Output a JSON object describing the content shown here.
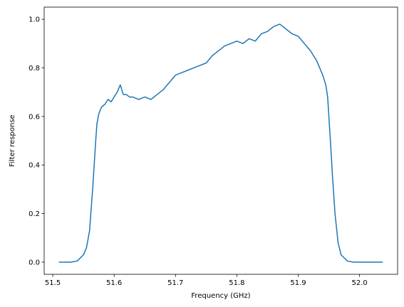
{
  "chart_data": {
    "type": "line",
    "title": "",
    "xlabel": "Frequency (GHz)",
    "ylabel": "Filter response",
    "xlim": [
      51.486,
      52.062
    ],
    "ylim": [
      -0.05,
      1.05
    ],
    "grid": false,
    "x_ticks": [
      51.5,
      51.6,
      51.7,
      51.8,
      51.9,
      52.0
    ],
    "x_tick_labels": [
      "51.5",
      "51.6",
      "51.7",
      "51.8",
      "51.9",
      "52.0"
    ],
    "y_ticks": [
      0.0,
      0.2,
      0.4,
      0.6,
      0.8,
      1.0
    ],
    "y_tick_labels": [
      "0.0",
      "0.2",
      "0.4",
      "0.6",
      "0.8",
      "1.0"
    ],
    "series": [
      {
        "color": "#1f77b4",
        "x": [
          51.51,
          51.52,
          51.53,
          51.54,
          51.55,
          51.555,
          51.56,
          51.562,
          51.565,
          51.568,
          51.57,
          51.572,
          51.575,
          51.578,
          51.58,
          51.585,
          51.59,
          51.595,
          51.6,
          51.605,
          51.61,
          51.615,
          51.62,
          51.625,
          51.63,
          51.64,
          51.65,
          51.66,
          51.67,
          51.68,
          51.69,
          51.7,
          51.71,
          51.72,
          51.73,
          51.74,
          51.75,
          51.76,
          51.77,
          51.78,
          51.79,
          51.8,
          51.81,
          51.82,
          51.83,
          51.84,
          51.85,
          51.86,
          51.87,
          51.88,
          51.89,
          51.9,
          51.91,
          51.92,
          51.93,
          51.935,
          51.94,
          51.945,
          51.948,
          51.95,
          51.953,
          51.956,
          51.96,
          51.965,
          51.97,
          51.98,
          51.99,
          52.0,
          52.01,
          52.02,
          52.03,
          52.038
        ],
        "y": [
          0.0,
          0.0,
          0.0,
          0.005,
          0.03,
          0.06,
          0.13,
          0.2,
          0.3,
          0.42,
          0.5,
          0.57,
          0.61,
          0.63,
          0.64,
          0.65,
          0.67,
          0.66,
          0.68,
          0.7,
          0.73,
          0.69,
          0.69,
          0.68,
          0.68,
          0.67,
          0.68,
          0.67,
          0.69,
          0.71,
          0.74,
          0.77,
          0.78,
          0.79,
          0.8,
          0.81,
          0.82,
          0.85,
          0.87,
          0.89,
          0.9,
          0.91,
          0.9,
          0.92,
          0.91,
          0.94,
          0.95,
          0.97,
          0.98,
          0.96,
          0.94,
          0.93,
          0.9,
          0.87,
          0.83,
          0.8,
          0.77,
          0.73,
          0.68,
          0.6,
          0.48,
          0.35,
          0.2,
          0.08,
          0.03,
          0.005,
          0.0,
          0.0,
          0.0,
          0.0,
          0.0,
          0.0
        ]
      }
    ]
  }
}
